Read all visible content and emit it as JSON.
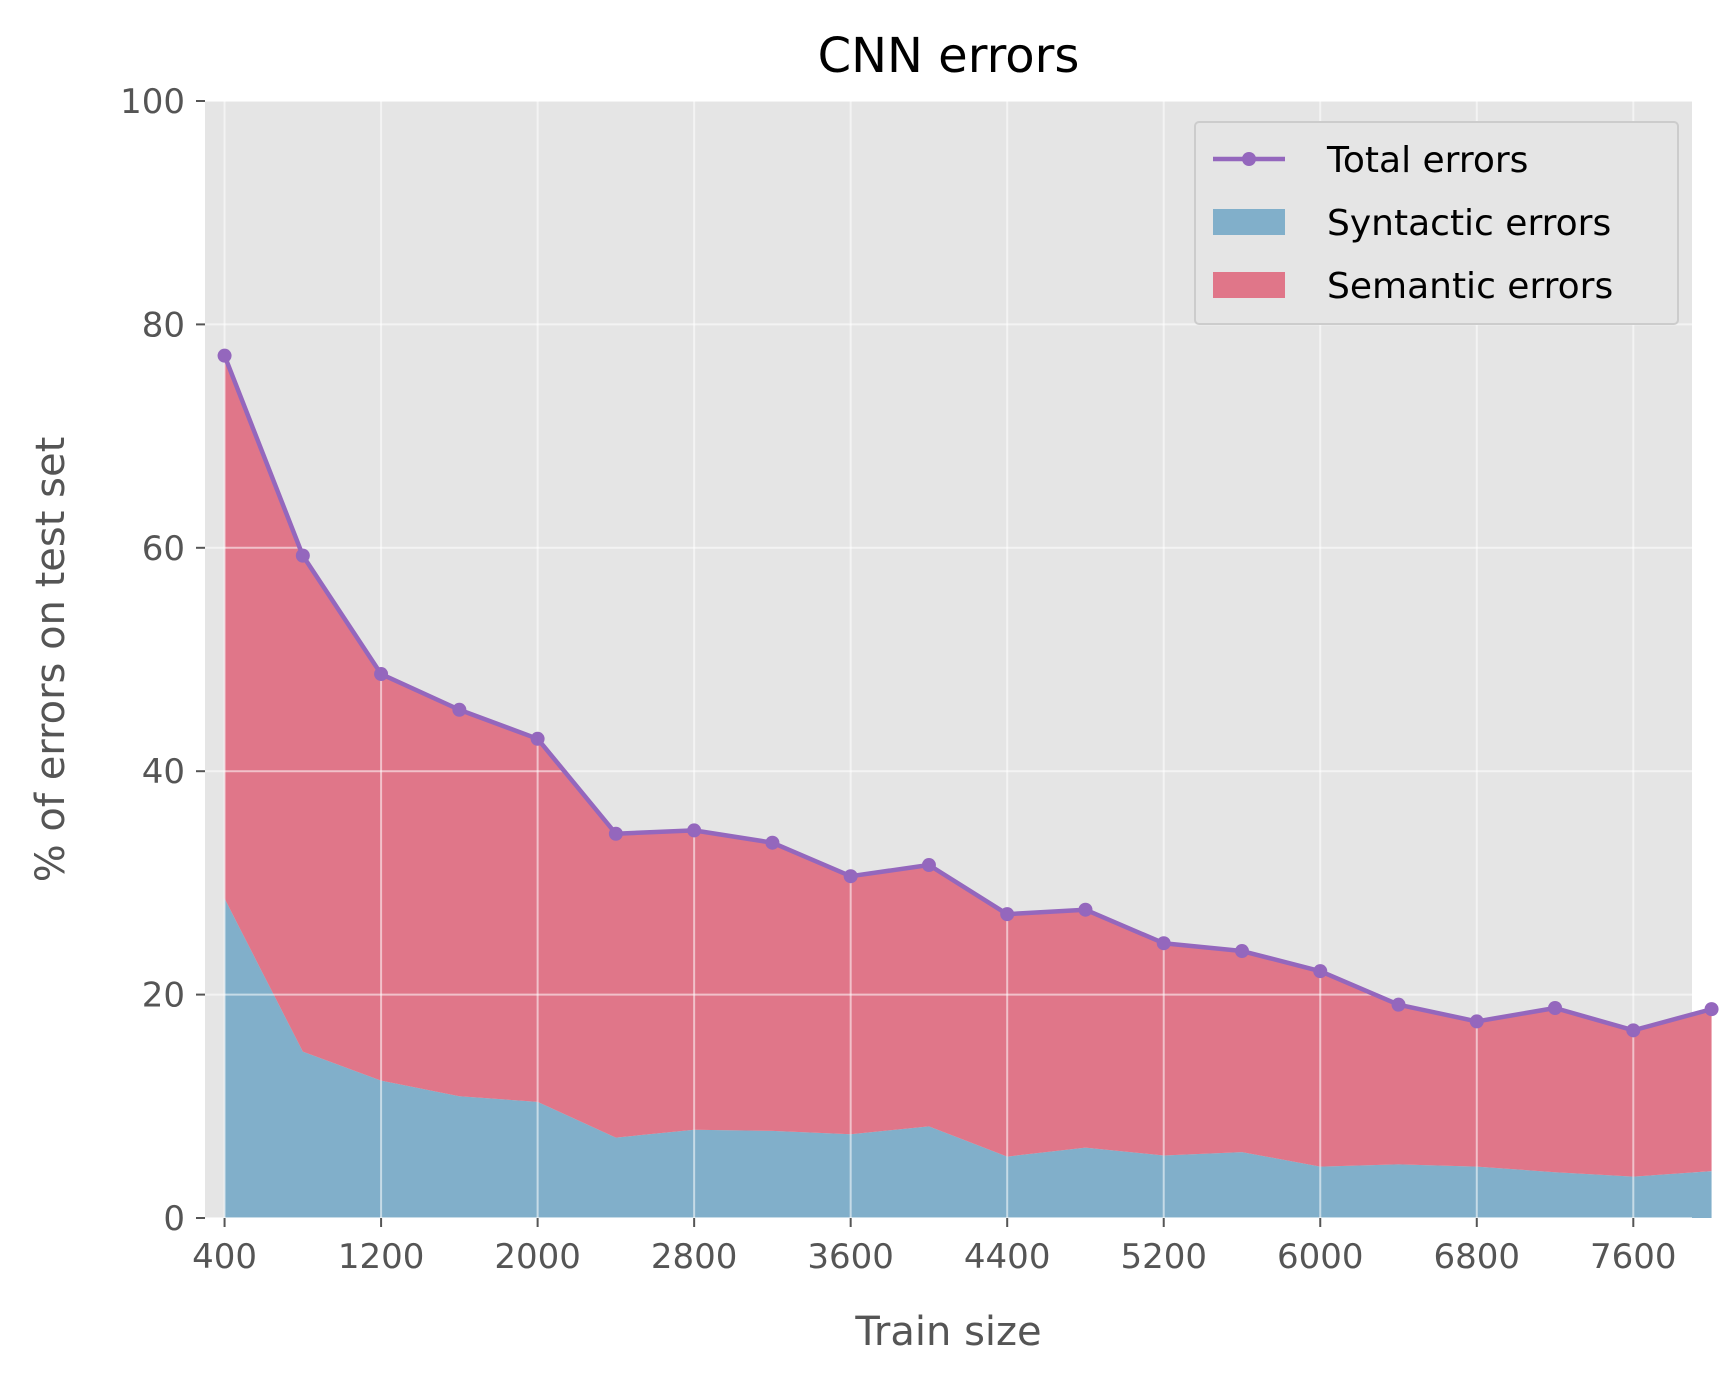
{
  "chart_data": {
    "type": "area",
    "title": "CNN errors",
    "xlabel": "Train size",
    "ylabel": "% of errors on test set",
    "xlim": [
      300,
      7900
    ],
    "ylim": [
      0,
      100
    ],
    "xticks": [
      400,
      1200,
      2000,
      2800,
      3600,
      4400,
      5200,
      6000,
      6800,
      7600
    ],
    "yticks": [
      0,
      20,
      40,
      60,
      80,
      100
    ],
    "grid": true,
    "legend_position": "top-right",
    "x": [
      400,
      800,
      1200,
      1600,
      2000,
      2400,
      2800,
      3200,
      3600,
      4000,
      4400,
      4800,
      5200,
      5600,
      6000,
      6400,
      6800,
      7200,
      7600,
      8000
    ],
    "series": [
      {
        "name": "Total errors",
        "kind": "line",
        "color": "#9467bd",
        "values": [
          77.2,
          59.3,
          48.7,
          45.5,
          42.9,
          34.4,
          34.7,
          33.6,
          30.6,
          31.6,
          27.2,
          27.6,
          24.6,
          23.9,
          22.1,
          19.1,
          17.6,
          18.8,
          16.8,
          18.7
        ]
      },
      {
        "name": "Syntactic errors",
        "kind": "area",
        "color": "#81afca",
        "values": [
          28.6,
          14.9,
          12.3,
          10.9,
          10.4,
          7.2,
          7.9,
          7.8,
          7.5,
          8.2,
          5.5,
          6.3,
          5.6,
          5.9,
          4.6,
          4.8,
          4.6,
          4.1,
          3.7,
          4.2
        ]
      },
      {
        "name": "Semantic errors",
        "kind": "area",
        "color": "#e07689",
        "values": [
          48.6,
          44.4,
          36.4,
          34.6,
          32.5,
          27.2,
          26.8,
          25.8,
          23.1,
          23.4,
          21.7,
          21.3,
          19.0,
          18.0,
          17.5,
          14.3,
          13.0,
          14.7,
          13.1,
          14.5
        ]
      }
    ]
  }
}
